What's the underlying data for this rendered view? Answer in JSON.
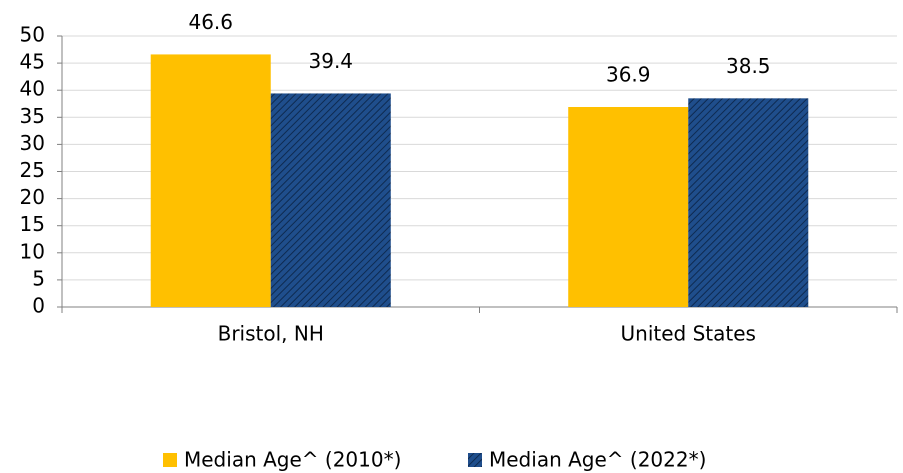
{
  "chart_data": {
    "type": "bar",
    "categories": [
      "Bristol, NH",
      "United States"
    ],
    "series": [
      {
        "name": "Median Age^ (2010*)",
        "color": "#FFC000",
        "values": [
          46.6,
          36.9
        ]
      },
      {
        "name": "Median Age^ (2022*)",
        "color": "#1F4E8C",
        "values": [
          39.4,
          38.5
        ]
      }
    ],
    "ylim": [
      0,
      50
    ],
    "yticks": [
      0,
      5,
      10,
      15,
      20,
      25,
      30,
      35,
      40,
      45,
      50
    ],
    "grid": true,
    "legend": "bottom"
  }
}
